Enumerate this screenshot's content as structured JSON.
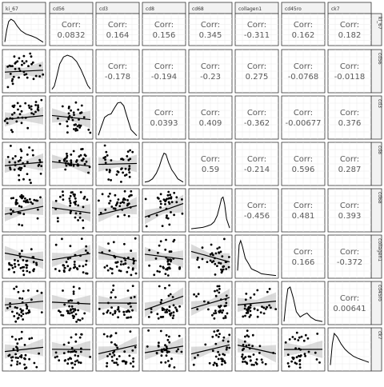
{
  "chart_data": {
    "type": "scatterplot-matrix",
    "variables": [
      "ki_67",
      "cd56",
      "cd3",
      "cd8",
      "cd68",
      "collagen1",
      "cd45ro",
      "ck7"
    ],
    "corr_label": "Corr:",
    "correlations": [
      [
        null,
        "0.0832",
        "0.164",
        "0.156",
        "0.345",
        "-0.311",
        "0.162",
        "0.182"
      ],
      [
        null,
        null,
        "-0.178",
        "-0.194",
        "-0.23",
        "0.275",
        "-0.0768",
        "-0.0118"
      ],
      [
        null,
        null,
        null,
        "0.0393",
        "0.409",
        "-0.362",
        "-0.00677",
        "0.376"
      ],
      [
        null,
        null,
        null,
        null,
        "0.59",
        "-0.214",
        "0.596",
        "0.287"
      ],
      [
        null,
        null,
        null,
        null,
        null,
        "-0.456",
        "0.481",
        "0.393"
      ],
      [
        null,
        null,
        null,
        null,
        null,
        null,
        "0.166",
        "-0.372"
      ],
      [
        null,
        null,
        null,
        null,
        null,
        null,
        null,
        "0.00641"
      ],
      [
        null,
        null,
        null,
        null,
        null,
        null,
        null,
        null
      ]
    ],
    "density_shapes": [
      [
        [
          0,
          0.05
        ],
        [
          0.05,
          0.55
        ],
        [
          0.1,
          0.9
        ],
        [
          0.16,
          1
        ],
        [
          0.24,
          0.92
        ],
        [
          0.32,
          0.72
        ],
        [
          0.42,
          0.52
        ],
        [
          0.55,
          0.38
        ],
        [
          0.7,
          0.3
        ],
        [
          0.82,
          0.22
        ],
        [
          0.92,
          0.12
        ],
        [
          1,
          0.04
        ]
      ],
      [
        [
          0,
          0.03
        ],
        [
          0.06,
          0.12
        ],
        [
          0.12,
          0.38
        ],
        [
          0.2,
          0.75
        ],
        [
          0.3,
          0.95
        ],
        [
          0.4,
          1
        ],
        [
          0.52,
          0.95
        ],
        [
          0.64,
          0.82
        ],
        [
          0.75,
          0.6
        ],
        [
          0.85,
          0.35
        ],
        [
          0.93,
          0.14
        ],
        [
          1,
          0.04
        ]
      ],
      [
        [
          0,
          0.04
        ],
        [
          0.08,
          0.3
        ],
        [
          0.16,
          0.55
        ],
        [
          0.25,
          0.62
        ],
        [
          0.33,
          0.65
        ],
        [
          0.42,
          0.82
        ],
        [
          0.5,
          0.96
        ],
        [
          0.58,
          0.98
        ],
        [
          0.66,
          0.88
        ],
        [
          0.75,
          0.55
        ],
        [
          0.85,
          0.2
        ],
        [
          1,
          0.03
        ]
      ],
      [
        [
          0,
          0.03
        ],
        [
          0.1,
          0.05
        ],
        [
          0.2,
          0.12
        ],
        [
          0.3,
          0.28
        ],
        [
          0.38,
          0.48
        ],
        [
          0.45,
          0.72
        ],
        [
          0.5,
          0.85
        ],
        [
          0.55,
          0.82
        ],
        [
          0.62,
          0.58
        ],
        [
          0.7,
          0.38
        ],
        [
          0.78,
          0.26
        ],
        [
          0.86,
          0.12
        ],
        [
          1,
          0.03
        ]
      ],
      [
        [
          0,
          0.02
        ],
        [
          0.15,
          0.04
        ],
        [
          0.3,
          0.06
        ],
        [
          0.42,
          0.1
        ],
        [
          0.52,
          0.14
        ],
        [
          0.6,
          0.22
        ],
        [
          0.68,
          0.4
        ],
        [
          0.74,
          0.65
        ],
        [
          0.79,
          0.88
        ],
        [
          0.83,
          0.92
        ],
        [
          0.87,
          0.72
        ],
        [
          0.92,
          0.3
        ],
        [
          1,
          0.04
        ]
      ],
      [
        [
          0,
          0.15
        ],
        [
          0.04,
          0.88
        ],
        [
          0.08,
          1
        ],
        [
          0.13,
          0.82
        ],
        [
          0.2,
          0.5
        ],
        [
          0.28,
          0.36
        ],
        [
          0.36,
          0.2
        ],
        [
          0.44,
          0.16
        ],
        [
          0.52,
          0.12
        ],
        [
          0.62,
          0.06
        ],
        [
          0.75,
          0.04
        ],
        [
          1,
          0.01
        ]
      ],
      [
        [
          0,
          0.02
        ],
        [
          0.05,
          0.55
        ],
        [
          0.1,
          0.95
        ],
        [
          0.16,
          1
        ],
        [
          0.24,
          0.7
        ],
        [
          0.32,
          0.3
        ],
        [
          0.42,
          0.15
        ],
        [
          0.52,
          0.22
        ],
        [
          0.6,
          0.26
        ],
        [
          0.7,
          0.14
        ],
        [
          0.82,
          0.06
        ],
        [
          1,
          0.02
        ]
      ],
      [
        [
          0,
          0.1
        ],
        [
          0.05,
          0.7
        ],
        [
          0.1,
          1
        ],
        [
          0.18,
          0.9
        ],
        [
          0.28,
          0.7
        ],
        [
          0.38,
          0.55
        ],
        [
          0.48,
          0.45
        ],
        [
          0.6,
          0.35
        ],
        [
          0.7,
          0.3
        ],
        [
          0.8,
          0.26
        ],
        [
          0.9,
          0.22
        ],
        [
          1,
          0.18
        ]
      ]
    ],
    "scatter_points": [
      [
        []
      ],
      [
        [
          [
            0.03,
            0.6
          ],
          [
            0.08,
            0.45
          ],
          [
            0.1,
            0.75
          ],
          [
            0.12,
            0.62
          ],
          [
            0.15,
            0.5
          ],
          [
            0.18,
            0.7
          ],
          [
            0.2,
            0.4
          ],
          [
            0.22,
            0.85
          ],
          [
            0.25,
            0.55
          ],
          [
            0.28,
            0.66
          ],
          [
            0.3,
            0.3
          ],
          [
            0.34,
            0.58
          ],
          [
            0.36,
            0.72
          ],
          [
            0.38,
            0.15
          ],
          [
            0.4,
            0.48
          ],
          [
            0.42,
            0.62
          ],
          [
            0.05,
            0.25
          ],
          [
            0.06,
            0.9
          ],
          [
            0.14,
            0.35
          ],
          [
            0.45,
            0.55
          ],
          [
            0.5,
            0.7
          ],
          [
            0.55,
            0.52
          ],
          [
            0.6,
            0.45
          ],
          [
            0.65,
            0.3
          ],
          [
            0.7,
            0.9
          ],
          [
            0.75,
            0.55
          ],
          [
            0.8,
            0.48
          ],
          [
            0.88,
            0.62
          ],
          [
            0.92,
            0.6
          ],
          [
            0.97,
            0.55
          ],
          [
            0.04,
            0.1
          ],
          [
            0.09,
            0.05
          ],
          [
            0.11,
            0.55
          ],
          [
            0.17,
            0.58
          ],
          [
            0.26,
            0.62
          ],
          [
            0.32,
            0.44
          ]
        ]
      ]
    ],
    "scatter_fits": [
      [],
      [
        [
          0.52,
          0.56
        ]
      ],
      [
        [
          0.62,
          0.45
        ],
        [
          0.7,
          0.35
        ]
      ],
      [
        [
          0.6,
          0.48
        ],
        [
          0.62,
          0.45
        ],
        [
          0.58,
          0.52
        ]
      ],
      [
        [
          0.35,
          0.62
        ],
        [
          0.72,
          0.45
        ],
        [
          0.56,
          0.6
        ],
        [
          0.2,
          0.72
        ]
      ],
      [
        [
          0.7,
          0.12
        ],
        [
          0.78,
          0.12
        ],
        [
          0.75,
          0.12
        ],
        [
          0.3,
          0.1
        ],
        [
          0.6,
          0.15
        ]
      ],
      [
        [
          0.25,
          0.2
        ],
        [
          0.32,
          0.24
        ],
        [
          0.3,
          0.22
        ],
        [
          0.18,
          0.3
        ],
        [
          0.26,
          0.22
        ],
        [
          0.45,
          0.24
        ]
      ],
      [
        [
          0.4,
          0.32
        ],
        [
          0.4,
          0.32
        ],
        [
          0.55,
          0.3
        ],
        [
          0.3,
          0.38
        ],
        [
          0.35,
          0.35
        ],
        [
          0.2,
          0.45
        ],
        [
          0.5,
          0.3
        ]
      ]
    ]
  }
}
